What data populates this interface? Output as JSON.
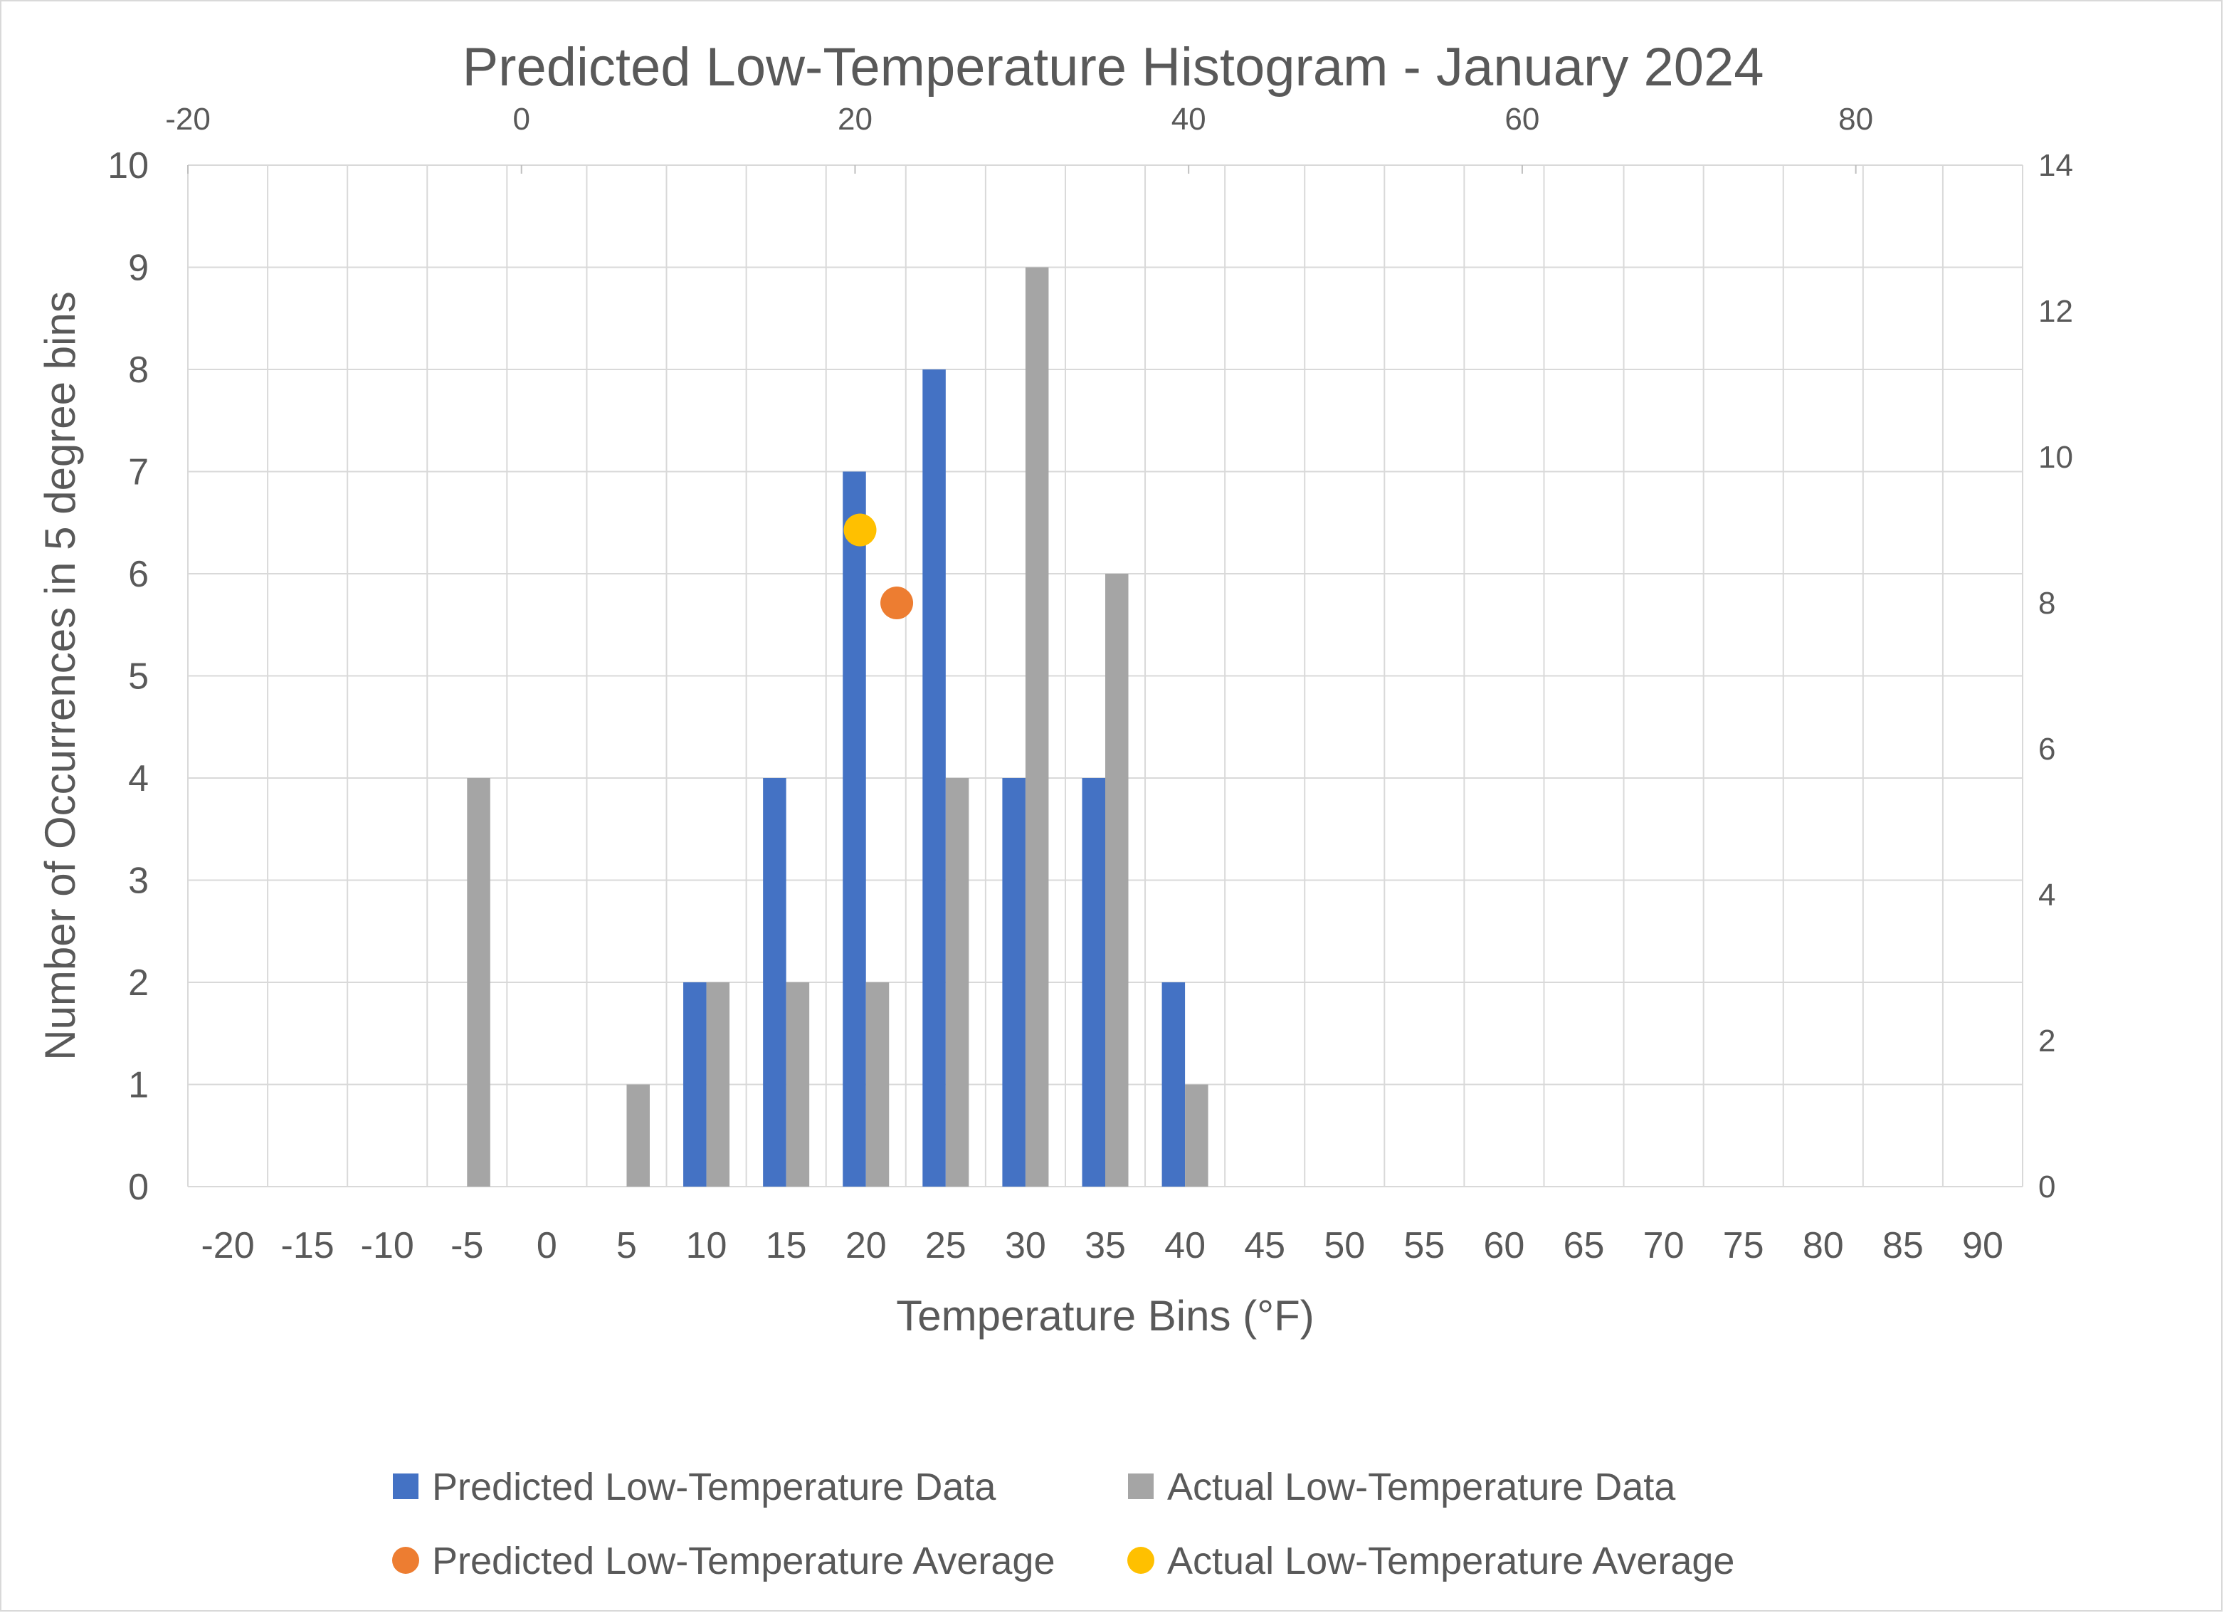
{
  "chart_data": {
    "type": "bar",
    "title": "Predicted Low-Temperature Histogram - January 2024",
    "xlabel": "Temperature Bins (°F)",
    "ylabel": "Number of Occurrences in 5 degree bins",
    "categories": [
      "-20",
      "-15",
      "-10",
      "-5",
      "0",
      "5",
      "10",
      "15",
      "20",
      "25",
      "30",
      "35",
      "40",
      "45",
      "50",
      "55",
      "60",
      "65",
      "70",
      "75",
      "80",
      "85",
      "90"
    ],
    "ylim": [
      0,
      10
    ],
    "yticks": [
      "0",
      "1",
      "2",
      "3",
      "4",
      "5",
      "6",
      "7",
      "8",
      "9",
      "10"
    ],
    "secondary_y": {
      "ylim": [
        0,
        14
      ],
      "ticks": [
        "0",
        "2",
        "4",
        "6",
        "8",
        "10",
        "12",
        "14"
      ]
    },
    "secondary_x": {
      "xlim": [
        -20,
        90
      ],
      "ticks": [
        "-20",
        "0",
        "20",
        "40",
        "60",
        "80"
      ]
    },
    "grid": true,
    "legend_position": "bottom",
    "series": [
      {
        "name": "Predicted Low-Temperature Data",
        "color": "#4472c4",
        "values": [
          0,
          0,
          0,
          0,
          0,
          0,
          2,
          4,
          7,
          8,
          4,
          4,
          2,
          0,
          0,
          0,
          0,
          0,
          0,
          0,
          0,
          0,
          0
        ]
      },
      {
        "name": "Actual Low-Temperature Data",
        "color": "#a5a5a5",
        "values": [
          0,
          0,
          0,
          4,
          0,
          1,
          2,
          2,
          2,
          4,
          9,
          6,
          1,
          0,
          0,
          0,
          0,
          0,
          0,
          0,
          0,
          0,
          0
        ]
      }
    ],
    "scatter_series": [
      {
        "name": "Predicted Low-Temperature Average",
        "color": "#ed7d31",
        "x": 22.5,
        "y": 8
      },
      {
        "name": "Actual Low-Temperature Average",
        "color": "#ffc000",
        "x": 20.3,
        "y": 9
      }
    ]
  }
}
